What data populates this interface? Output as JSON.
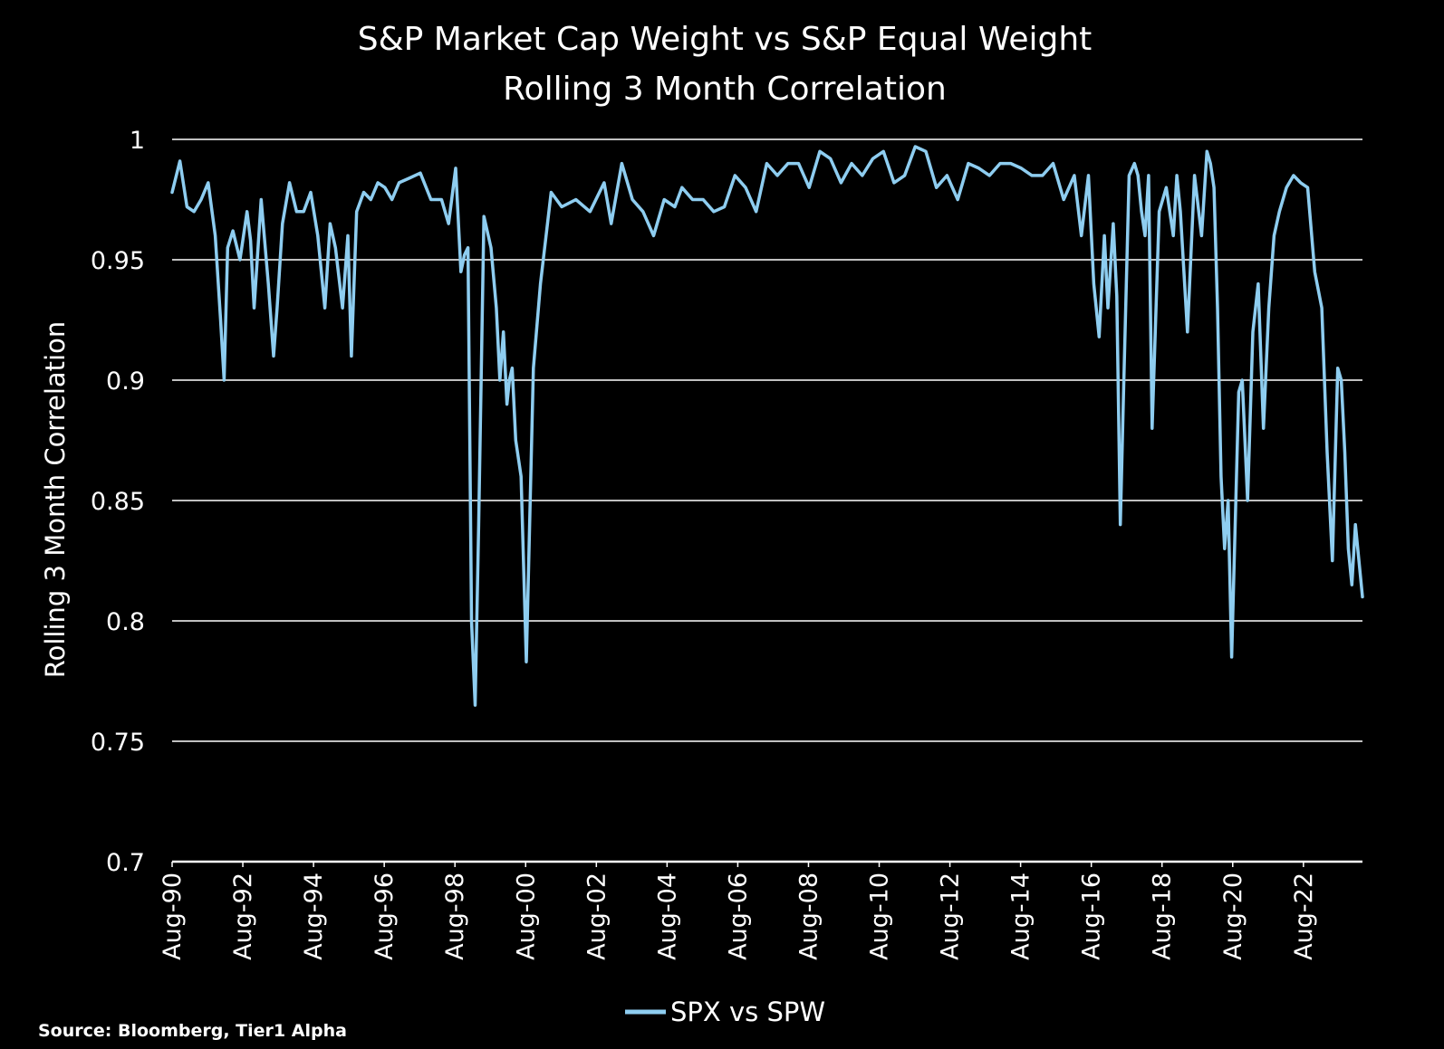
{
  "source_note": "Source: Bloomberg, Tier1 Alpha",
  "colors": {
    "background": "#000000",
    "series": "#8ecdf0",
    "grid": "#ffffff",
    "text": "#ffffff"
  },
  "chart_data": {
    "type": "line",
    "title": [
      "S&P Market Cap Weight vs S&P Equal Weight",
      "Rolling 3 Month Correlation"
    ],
    "xlabel": "",
    "ylabel": "Rolling 3 Month Correlation",
    "ylim": [
      0.7,
      1
    ],
    "yticks": [
      1,
      0.95,
      0.9,
      0.85,
      0.8,
      0.75,
      0.7
    ],
    "ytick_labels": [
      "1",
      "0.95",
      "0.9",
      "0.85",
      "0.8",
      "0.75",
      "0.7"
    ],
    "xlim": [
      1990.58,
      2024.25
    ],
    "xticks": [
      1990.58,
      1992.58,
      1994.58,
      1996.58,
      1998.58,
      2000.58,
      2002.58,
      2004.58,
      2006.58,
      2008.58,
      2010.58,
      2012.58,
      2014.58,
      2016.58,
      2018.58,
      2020.58,
      2022.58
    ],
    "xtick_labels": [
      "Aug-90",
      "Aug-92",
      "Aug-94",
      "Aug-96",
      "Aug-98",
      "Aug-00",
      "Aug-02",
      "Aug-04",
      "Aug-06",
      "Aug-08",
      "Aug-10",
      "Aug-12",
      "Aug-14",
      "Aug-16",
      "Aug-18",
      "Aug-20",
      "Aug-22"
    ],
    "grid": "horizontal",
    "legend": "bottom-center",
    "series": [
      {
        "name": "SPX vs SPW",
        "color": "#8ecdf0",
        "x": [
          1990.58,
          1990.8,
          1991.0,
          1991.2,
          1991.4,
          1991.6,
          1991.8,
          1991.95,
          1992.05,
          1992.15,
          1992.3,
          1992.5,
          1992.7,
          1992.8,
          1992.9,
          1993.1,
          1993.3,
          1993.45,
          1993.55,
          1993.7,
          1993.9,
          1994.1,
          1994.3,
          1994.5,
          1994.7,
          1994.9,
          1995.05,
          1995.2,
          1995.4,
          1995.55,
          1995.65,
          1995.8,
          1996.0,
          1996.2,
          1996.4,
          1996.6,
          1996.8,
          1997.0,
          1997.3,
          1997.6,
          1997.9,
          1998.2,
          1998.4,
          1998.6,
          1998.75,
          1998.85,
          1998.95,
          1999.05,
          1999.15,
          1999.25,
          1999.4,
          1999.6,
          1999.75,
          1999.85,
          1999.95,
          2000.05,
          2000.12,
          2000.2,
          2000.3,
          2000.45,
          2000.6,
          2000.8,
          2001.0,
          2001.3,
          2001.6,
          2002.0,
          2002.4,
          2002.8,
          2003.0,
          2003.3,
          2003.6,
          2003.9,
          2004.2,
          2004.5,
          2004.8,
          2005.0,
          2005.3,
          2005.6,
          2005.9,
          2006.2,
          2006.5,
          2006.8,
          2007.1,
          2007.4,
          2007.7,
          2008.0,
          2008.3,
          2008.6,
          2008.9,
          2009.2,
          2009.5,
          2009.8,
          2010.1,
          2010.4,
          2010.7,
          2011.0,
          2011.3,
          2011.6,
          2011.9,
          2012.2,
          2012.5,
          2012.8,
          2013.1,
          2013.4,
          2013.7,
          2014.0,
          2014.3,
          2014.6,
          2014.9,
          2015.2,
          2015.5,
          2015.8,
          2016.1,
          2016.3,
          2016.5,
          2016.65,
          2016.8,
          2016.95,
          2017.05,
          2017.2,
          2017.3,
          2017.4,
          2017.5,
          2017.65,
          2017.8,
          2017.9,
          2018.0,
          2018.1,
          2018.2,
          2018.3,
          2018.5,
          2018.7,
          2018.9,
          2019.0,
          2019.1,
          2019.3,
          2019.5,
          2019.7,
          2019.85,
          2019.95,
          2020.05,
          2020.15,
          2020.25,
          2020.35,
          2020.45,
          2020.55,
          2020.65,
          2020.75,
          2020.85,
          2021.0,
          2021.15,
          2021.3,
          2021.45,
          2021.6,
          2021.75,
          2021.9,
          2022.1,
          2022.3,
          2022.5,
          2022.7,
          2022.9,
          2023.1,
          2023.25,
          2023.4,
          2023.55,
          2023.65,
          2023.75,
          2023.85,
          2023.95,
          2024.05,
          2024.15,
          2024.25
        ],
        "y": [
          0.978,
          0.991,
          0.972,
          0.97,
          0.975,
          0.982,
          0.96,
          0.925,
          0.9,
          0.955,
          0.962,
          0.95,
          0.97,
          0.958,
          0.93,
          0.975,
          0.94,
          0.91,
          0.93,
          0.965,
          0.982,
          0.97,
          0.97,
          0.978,
          0.96,
          0.93,
          0.965,
          0.955,
          0.93,
          0.96,
          0.91,
          0.97,
          0.978,
          0.975,
          0.982,
          0.98,
          0.975,
          0.982,
          0.984,
          0.986,
          0.975,
          0.975,
          0.965,
          0.988,
          0.945,
          0.952,
          0.955,
          0.8,
          0.765,
          0.84,
          0.968,
          0.955,
          0.93,
          0.9,
          0.92,
          0.89,
          0.9,
          0.905,
          0.875,
          0.86,
          0.783,
          0.905,
          0.94,
          0.978,
          0.972,
          0.975,
          0.97,
          0.982,
          0.965,
          0.99,
          0.975,
          0.97,
          0.96,
          0.975,
          0.972,
          0.98,
          0.975,
          0.975,
          0.97,
          0.972,
          0.985,
          0.98,
          0.97,
          0.99,
          0.985,
          0.99,
          0.99,
          0.98,
          0.995,
          0.992,
          0.982,
          0.99,
          0.985,
          0.992,
          0.995,
          0.982,
          0.985,
          0.997,
          0.995,
          0.98,
          0.985,
          0.975,
          0.99,
          0.988,
          0.985,
          0.99,
          0.99,
          0.988,
          0.985,
          0.985,
          0.99,
          0.975,
          0.985,
          0.96,
          0.985,
          0.94,
          0.918,
          0.96,
          0.93,
          0.965,
          0.935,
          0.84,
          0.9,
          0.985,
          0.99,
          0.985,
          0.97,
          0.96,
          0.985,
          0.88,
          0.97,
          0.98,
          0.96,
          0.985,
          0.97,
          0.92,
          0.985,
          0.96,
          0.995,
          0.99,
          0.98,
          0.93,
          0.86,
          0.83,
          0.85,
          0.785,
          0.84,
          0.895,
          0.9,
          0.85,
          0.92,
          0.94,
          0.88,
          0.93,
          0.96,
          0.97,
          0.98,
          0.985,
          0.982,
          0.98,
          0.945,
          0.93,
          0.87,
          0.825,
          0.905,
          0.9,
          0.87,
          0.83,
          0.815,
          0.84,
          0.825,
          0.81
        ]
      }
    ]
  }
}
